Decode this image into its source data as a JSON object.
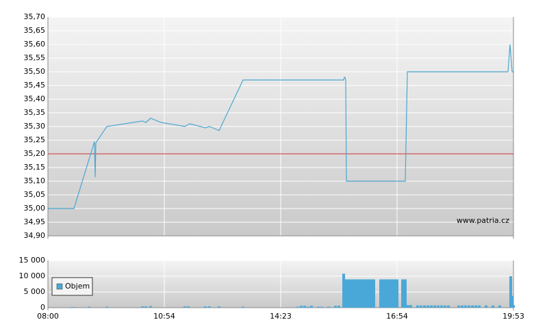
{
  "chart_data": [
    {
      "type": "line",
      "x": [
        0,
        38,
        68,
        69,
        70,
        86,
        138,
        143,
        150,
        165,
        200,
        207,
        230,
        236,
        250,
        285,
        432,
        433,
        434,
        435,
        436,
        522,
        525,
        672,
        675,
        678,
        680
      ],
      "values": [
        35.0,
        35.0,
        35.245,
        35.115,
        35.24,
        35.3,
        35.32,
        35.315,
        35.33,
        35.315,
        35.3,
        35.31,
        35.295,
        35.3,
        35.285,
        35.47,
        35.47,
        35.48,
        35.48,
        35.47,
        35.1,
        35.1,
        35.5,
        35.5,
        35.6,
        35.5,
        35.5
      ],
      "color": "#4aa6d0",
      "xlim": [
        0,
        680
      ],
      "ylim": [
        34.9,
        35.7
      ],
      "yticks": [
        {
          "value": 34.9,
          "label": "34,90"
        },
        {
          "value": 34.95,
          "label": "34,95"
        },
        {
          "value": 35.0,
          "label": "35,00"
        },
        {
          "value": 35.05,
          "label": "35,05"
        },
        {
          "value": 35.1,
          "label": "35,10"
        },
        {
          "value": 35.15,
          "label": "35,15"
        },
        {
          "value": 35.2,
          "label": "35,20"
        },
        {
          "value": 35.25,
          "label": "35,25"
        },
        {
          "value": 35.3,
          "label": "35,30"
        },
        {
          "value": 35.35,
          "label": "35,35"
        },
        {
          "value": 35.4,
          "label": "35,40"
        },
        {
          "value": 35.45,
          "label": "35,45"
        },
        {
          "value": 35.5,
          "label": "35,50"
        },
        {
          "value": 35.55,
          "label": "35,55"
        },
        {
          "value": 35.6,
          "label": "35,60"
        },
        {
          "value": 35.65,
          "label": "35,65"
        },
        {
          "value": 35.7,
          "label": "35,70"
        }
      ],
      "reference_line": 35.2,
      "reference_color": "#d03030",
      "watermark": "www.patria.cz",
      "grid": true
    },
    {
      "type": "bar",
      "x": [
        35,
        38,
        60,
        86,
        138,
        143,
        150,
        200,
        205,
        230,
        236,
        250,
        285,
        365,
        370,
        375,
        380,
        385,
        395,
        400,
        410,
        420,
        425,
        432,
        436,
        440,
        444,
        448,
        452,
        456,
        460,
        464,
        468,
        472,
        476,
        486,
        490,
        494,
        498,
        502,
        506,
        510,
        518,
        522,
        526,
        530,
        540,
        545,
        550,
        555,
        560,
        565,
        570,
        575,
        580,
        585,
        600,
        605,
        610,
        615,
        620,
        625,
        630,
        640,
        650,
        660,
        676,
        678,
        680
      ],
      "series": [
        {
          "name": "Objem",
          "color": "#4aa8d8",
          "values": [
            200,
            200,
            300,
            300,
            400,
            400,
            500,
            400,
            400,
            400,
            400,
            400,
            300,
            300,
            600,
            600,
            300,
            600,
            300,
            300,
            300,
            600,
            600,
            10800,
            9000,
            9000,
            9000,
            9000,
            9000,
            9000,
            9000,
            9000,
            9000,
            9000,
            9000,
            9000,
            9000,
            9000,
            9000,
            9000,
            9000,
            9000,
            9000,
            9000,
            800,
            800,
            700,
            700,
            700,
            700,
            700,
            700,
            700,
            700,
            700,
            700,
            700,
            700,
            700,
            700,
            700,
            700,
            700,
            700,
            700,
            700,
            10000,
            3700,
            800
          ]
        }
      ],
      "xlim": [
        0,
        680
      ],
      "ylim": [
        0,
        15000
      ],
      "yticks": [
        0,
        {
          "value": 5000,
          "label": "5 000"
        },
        {
          "value": 10000,
          "label": "10 000"
        },
        {
          "value": 15000,
          "label": "15 000"
        }
      ],
      "xticks": [
        {
          "value": 0,
          "label": "08:00"
        },
        {
          "value": 170,
          "label": "10:54"
        },
        {
          "value": 340,
          "label": "14:23"
        },
        {
          "value": 510,
          "label": "16:54"
        },
        {
          "value": 680,
          "label": "19:53"
        }
      ],
      "legend": "top-left",
      "grid": true
    }
  ]
}
